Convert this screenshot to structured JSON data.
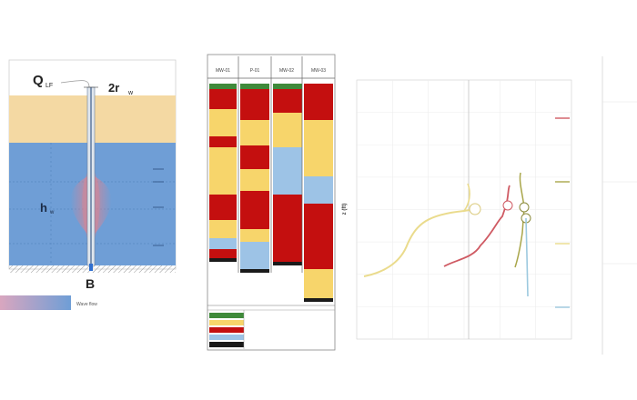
{
  "well_diagram": {
    "q_label": "Q",
    "q_subscript": "LF",
    "radius_label": "2r",
    "radius_subscript": "w",
    "head_label": "h",
    "head_subscript": "w",
    "bottom_label": "B",
    "colors": {
      "sand": "#f4d9a3",
      "water": "#6f9ed6",
      "plume": "#e8828a"
    }
  },
  "legend_bar": {
    "label": "Wave flow",
    "gradient_from": "#d9a6bf",
    "gradient_to": "#6f9ed6"
  },
  "log_table": {
    "column_headers": [
      "MW-01",
      "P-01",
      "MW-02",
      "MW-03"
    ],
    "colors": {
      "green": "#3f8a3a",
      "red": "#c40f0f",
      "yellow": "#f7d56b",
      "blue": "#9dc3e6",
      "black": "#1a1a1a",
      "white": "#ffffff"
    }
  },
  "chart": {
    "title": "",
    "y_label": "z (ft)",
    "series_colors": {
      "MW-01": "#eadb8c",
      "P-01": "#cf5a63",
      "MW-02": "#a9a64a",
      "MW-03": "#9cc9df"
    }
  }
}
